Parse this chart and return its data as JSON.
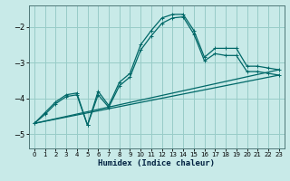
{
  "xlabel": "Humidex (Indice chaleur)",
  "bg_color": "#c8eae8",
  "grid_color": "#98ccc8",
  "line_color": "#006868",
  "spine_color": "#507878",
  "xlim": [
    -0.5,
    23.5
  ],
  "ylim": [
    -5.4,
    -1.4
  ],
  "yticks": [
    -5,
    -4,
    -3,
    -2
  ],
  "xticks": [
    0,
    1,
    2,
    3,
    4,
    5,
    6,
    7,
    8,
    9,
    10,
    11,
    12,
    13,
    14,
    15,
    16,
    17,
    18,
    19,
    20,
    21,
    22,
    23
  ],
  "line1_x": [
    0,
    1,
    2,
    3,
    4,
    5,
    6,
    7,
    8,
    9,
    10,
    11,
    12,
    13,
    14,
    15,
    16,
    17,
    18,
    19,
    20,
    21,
    22,
    23
  ],
  "line1_y": [
    -4.7,
    -4.4,
    -4.1,
    -3.9,
    -3.85,
    -4.75,
    -3.8,
    -4.2,
    -3.55,
    -3.3,
    -2.5,
    -2.1,
    -1.75,
    -1.65,
    -1.65,
    -2.1,
    -2.85,
    -2.6,
    -2.6,
    -2.6,
    -3.1,
    -3.1,
    -3.15,
    -3.2
  ],
  "line2_x": [
    0,
    1,
    2,
    3,
    4,
    5,
    6,
    7,
    8,
    9,
    10,
    11,
    12,
    13,
    14,
    15,
    16,
    17,
    18,
    19,
    20,
    21,
    22,
    23
  ],
  "line2_y": [
    -4.7,
    -4.45,
    -4.15,
    -3.95,
    -3.9,
    -4.75,
    -3.9,
    -4.25,
    -3.65,
    -3.4,
    -2.65,
    -2.25,
    -1.9,
    -1.75,
    -1.72,
    -2.2,
    -2.95,
    -2.75,
    -2.8,
    -2.8,
    -3.25,
    -3.25,
    -3.3,
    -3.35
  ],
  "line3_x": [
    0,
    23
  ],
  "line3_y": [
    -4.7,
    -3.2
  ],
  "line4_x": [
    0,
    23
  ],
  "line4_y": [
    -4.7,
    -3.35
  ]
}
